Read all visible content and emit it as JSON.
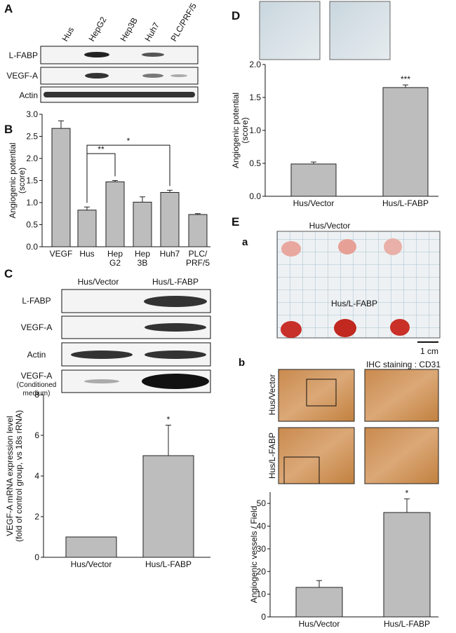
{
  "panels": [
    "A",
    "B",
    "C",
    "D",
    "E",
    "a",
    "b"
  ],
  "blots_a": {
    "lanes": [
      "Hus",
      "HepG2",
      "Hep3B",
      "Huh7",
      "PLC/PRF/5"
    ],
    "rows": [
      "L-FABP",
      "VEGF-A",
      "Actin"
    ]
  },
  "blots_c": {
    "lanes": [
      "Hus/Vector",
      "Hus/L-FABP"
    ],
    "rows": [
      "L-FABP",
      "VEGF-A",
      "Actin",
      "VEGF-A\n(Conditioned\nmedium)"
    ]
  },
  "photo_e": {
    "top": "Hus/Vector",
    "middle": "Hus/L-FABP",
    "scale": "1 cm"
  },
  "ihc_e": {
    "title": "IHC staining : CD31",
    "rows": [
      "Hus/Vector",
      "Hus/L-FABP"
    ]
  },
  "chart_data": [
    {
      "type": "bar",
      "ylabel": "Angiogenic potential\n(score)",
      "categories": [
        "VEGF",
        "Hus",
        "Hep\nG2",
        "Hep\n3B",
        "Huh7",
        "PLC/\nPRF/5"
      ],
      "values": [
        2.68,
        0.83,
        1.47,
        1.01,
        1.23,
        0.73
      ],
      "errors": [
        0.17,
        0.07,
        0.03,
        0.12,
        0.05,
        0.02
      ],
      "color": "#bdbdbd",
      "ylim": [
        0,
        3
      ],
      "yticks": [
        {
          "value": 0,
          "label": "0.0"
        },
        0.5,
        {
          "value": 1,
          "label": "1.0"
        },
        1.5,
        {
          "value": 2,
          "label": "2.0"
        },
        2.5,
        {
          "value": 3,
          "label": "3.0"
        }
      ],
      "significance": [
        {
          "from": 1,
          "to": 2,
          "label": "**"
        },
        {
          "from": 1,
          "to": 4,
          "label": "*"
        }
      ]
    },
    {
      "type": "bar",
      "ylabel": "VEGF-A mRNA expression level\n(fold of control group, vs 18s rRNA)",
      "categories": [
        "Hus/Vector",
        "Hus/L-FABP"
      ],
      "values": [
        1.0,
        5.0
      ],
      "errors": [
        0,
        1.5
      ],
      "color": "#bdbdbd",
      "ylim": [
        0,
        8
      ],
      "yticks": [
        0,
        2,
        4,
        6,
        8
      ],
      "significance": [
        {
          "bar": 1,
          "label": "*"
        }
      ]
    },
    {
      "type": "bar",
      "ylabel": "Angiogenic potential\n(score)",
      "categories": [
        "Hus/Vector",
        "Hus/L-FABP"
      ],
      "values": [
        0.49,
        1.65
      ],
      "errors": [
        0.03,
        0.04
      ],
      "color": "#bdbdbd",
      "ylim": [
        0,
        2
      ],
      "yticks": [
        {
          "value": 0,
          "label": "0.0"
        },
        0.5,
        {
          "value": 1,
          "label": "1.0"
        },
        1.5,
        {
          "value": 2,
          "label": "2.0"
        }
      ],
      "significance": [
        {
          "bar": 1,
          "label": "***"
        }
      ]
    },
    {
      "type": "bar",
      "ylabel": "Angiogenic vessels / Field",
      "categories": [
        "Hus/Vector",
        "Hus/L-FABP"
      ],
      "values": [
        13,
        46
      ],
      "errors": [
        3,
        6
      ],
      "color": "#bdbdbd",
      "ylim": [
        0,
        55
      ],
      "yticks": [
        0,
        10,
        20,
        30,
        40,
        50
      ],
      "significance": [
        {
          "bar": 1,
          "label": "*"
        }
      ]
    }
  ]
}
